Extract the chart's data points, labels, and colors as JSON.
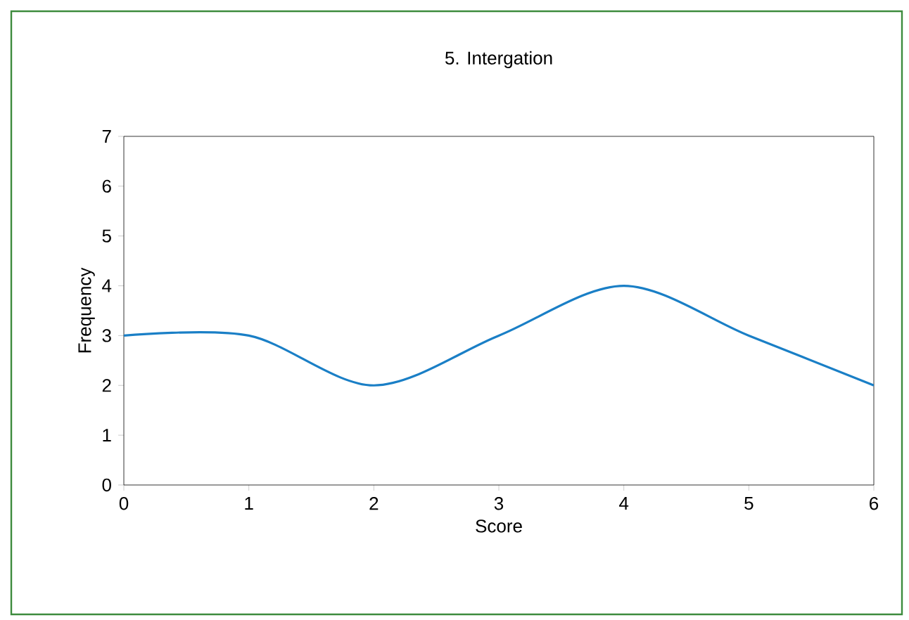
{
  "chart_data": {
    "type": "line",
    "title": "5. Intergation",
    "xlabel": "Score",
    "ylabel": "Frequency",
    "x": [
      0,
      1,
      2,
      3,
      4,
      5,
      6
    ],
    "values": [
      3,
      3,
      2,
      3,
      4,
      3,
      2
    ],
    "color": "#1a7fc6",
    "xlim": [
      0,
      6
    ],
    "ylim": [
      0,
      7
    ],
    "xticks": [
      0,
      1,
      2,
      3,
      4,
      5,
      6
    ],
    "yticks": [
      0,
      1,
      2,
      3,
      4,
      5,
      6,
      7
    ]
  }
}
